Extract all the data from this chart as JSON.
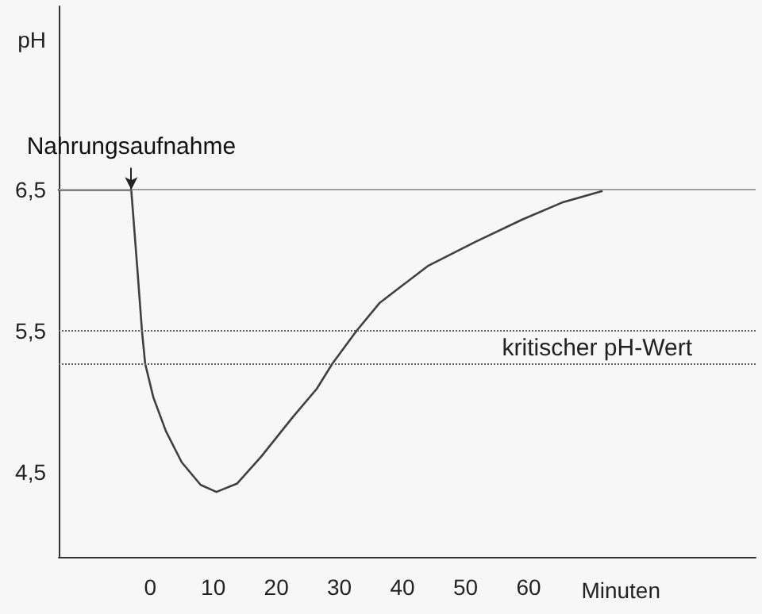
{
  "chart_data": {
    "type": "line",
    "xlabel": "Minuten",
    "ylabel": "pH",
    "xlim": [
      -14.5,
      96
    ],
    "ylim": [
      3.9,
      7.8
    ],
    "xticks": [
      0,
      10,
      20,
      30,
      40,
      50,
      60
    ],
    "yticks": [
      {
        "value": 4.5,
        "label": "4,5"
      },
      {
        "value": 5.5,
        "label": "5,5"
      },
      {
        "value": 6.5,
        "label": "6,5"
      }
    ],
    "x": [
      -14.5,
      -3,
      -2,
      -1.3,
      -0.8,
      0.5,
      2.5,
      5,
      8,
      10.5,
      13.8,
      17.6,
      22.6,
      26.4,
      28.9,
      32.7,
      36.4,
      40.2,
      44,
      51.5,
      59,
      65.3,
      71.6
    ],
    "series": [
      {
        "color": "#404040",
        "values": [
          6.5,
          6.5,
          5.92,
          5.5,
          5.27,
          5.03,
          4.79,
          4.57,
          4.41,
          4.36,
          4.42,
          4.61,
          4.89,
          5.09,
          5.27,
          5.5,
          5.7,
          5.83,
          5.96,
          6.13,
          6.29,
          6.41,
          6.49
        ]
      }
    ],
    "ref_lines": [
      {
        "axis": "y",
        "value": 6.5,
        "color": "#a0a0a0",
        "line_style": "solid"
      },
      {
        "axis": "y",
        "value": 5.5,
        "color": "#606060",
        "line_style": "dotted"
      },
      {
        "axis": "y",
        "value": 5.27,
        "color": "#606060",
        "line_style": "dotted",
        "label": "kritischer pH-Wert"
      }
    ],
    "annotations": [
      {
        "text": "Nahrungsaufnahme",
        "x": -3,
        "y": 6.5
      }
    ],
    "grid": false,
    "marker": "none",
    "line_style": "solid"
  }
}
